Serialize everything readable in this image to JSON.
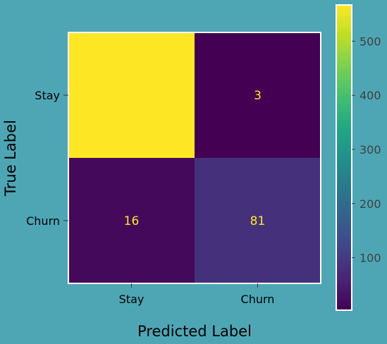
{
  "chart_data": {
    "type": "heatmap",
    "title": "",
    "xlabel": "Predicted Label",
    "ylabel": "True Label",
    "x_categories": [
      "Stay",
      "Churn"
    ],
    "y_categories": [
      "Stay",
      "Churn"
    ],
    "matrix": [
      [
        567,
        3
      ],
      [
        16,
        81
      ]
    ],
    "colormap": "viridis",
    "colorbar": {
      "range": [
        3,
        567
      ],
      "ticks": [
        100,
        200,
        300,
        400,
        500
      ],
      "tick_labels": [
        "100",
        "200",
        "300",
        "400",
        "500"
      ]
    },
    "colors": {
      "background": "#4ea6b5",
      "cell_text": "#fde725",
      "cell_border": "#ffffff",
      "tick_text": "#000000",
      "colorbar_tick_text": "#404040"
    }
  }
}
